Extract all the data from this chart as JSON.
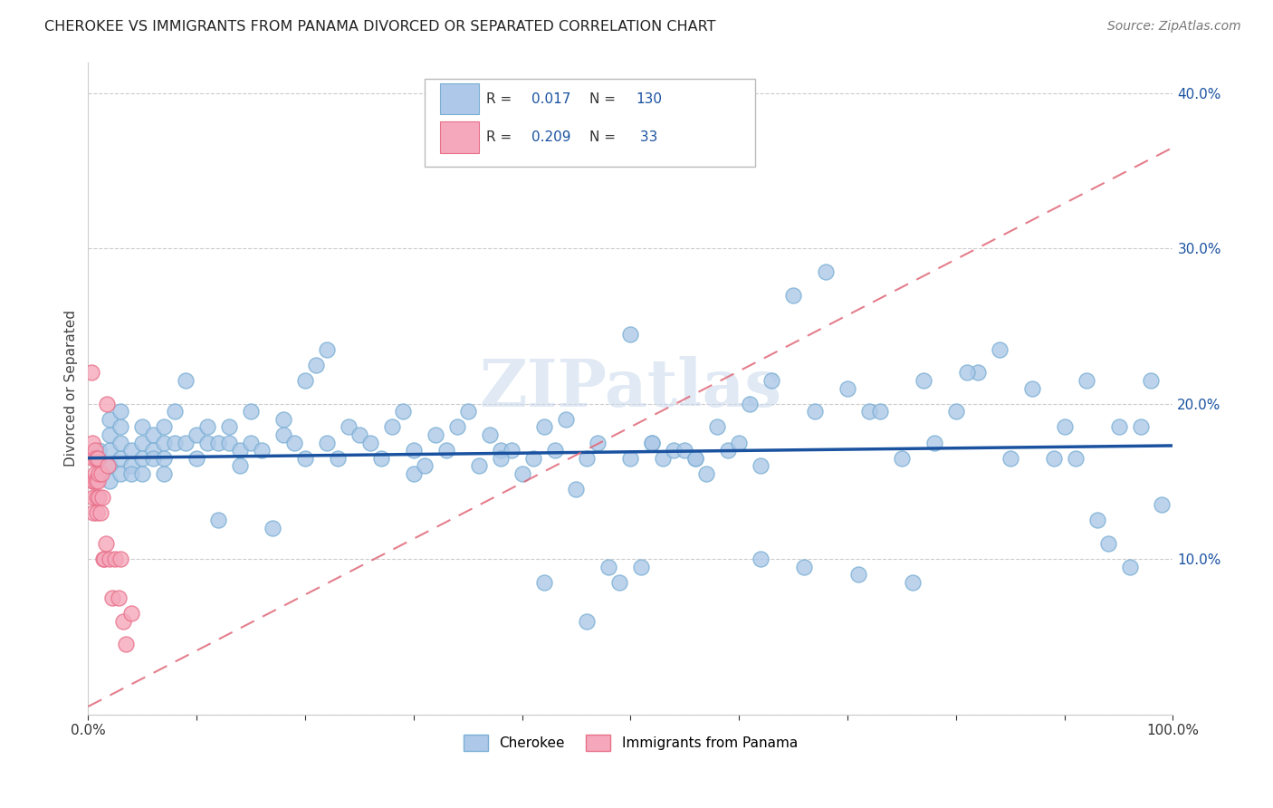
{
  "title": "CHEROKEE VS IMMIGRANTS FROM PANAMA DIVORCED OR SEPARATED CORRELATION CHART",
  "source": "Source: ZipAtlas.com",
  "ylabel": "Divorced or Separated",
  "x_min": 0.0,
  "x_max": 1.0,
  "y_min": 0.0,
  "y_max": 0.42,
  "y_ticks": [
    0.0,
    0.1,
    0.2,
    0.3,
    0.4
  ],
  "y_tick_labels": [
    "",
    "10.0%",
    "20.0%",
    "30.0%",
    "40.0%"
  ],
  "x_tick_pos": [
    0.0,
    0.1,
    0.2,
    0.3,
    0.4,
    0.5,
    0.6,
    0.7,
    0.8,
    0.9,
    1.0
  ],
  "x_tick_labels": [
    "0.0%",
    "",
    "",
    "",
    "",
    "",
    "",
    "",
    "",
    "",
    "100.0%"
  ],
  "cherokee_color": "#adc8e8",
  "panama_color": "#f5a8bb",
  "cherokee_edge": "#7aafd4",
  "panama_edge": "#e8708a",
  "trend_cherokee_color": "#1a52a0",
  "trend_panama_color": "#e06878",
  "R_cherokee": 0.017,
  "N_cherokee": 130,
  "R_panama": 0.209,
  "N_panama": 33,
  "watermark": "ZIPatlas",
  "legend_labels": [
    "Cherokee",
    "Immigrants from Panama"
  ],
  "cherokee_x": [
    0.01,
    0.01,
    0.02,
    0.02,
    0.02,
    0.02,
    0.02,
    0.03,
    0.03,
    0.03,
    0.03,
    0.03,
    0.04,
    0.04,
    0.04,
    0.05,
    0.05,
    0.05,
    0.05,
    0.06,
    0.06,
    0.06,
    0.07,
    0.07,
    0.07,
    0.07,
    0.08,
    0.08,
    0.09,
    0.09,
    0.1,
    0.1,
    0.11,
    0.11,
    0.12,
    0.12,
    0.13,
    0.13,
    0.14,
    0.14,
    0.15,
    0.15,
    0.16,
    0.17,
    0.18,
    0.18,
    0.19,
    0.2,
    0.2,
    0.21,
    0.22,
    0.22,
    0.23,
    0.24,
    0.25,
    0.26,
    0.27,
    0.28,
    0.29,
    0.3,
    0.3,
    0.31,
    0.32,
    0.33,
    0.34,
    0.35,
    0.36,
    0.37,
    0.38,
    0.39,
    0.4,
    0.41,
    0.42,
    0.43,
    0.44,
    0.45,
    0.46,
    0.47,
    0.48,
    0.49,
    0.5,
    0.5,
    0.51,
    0.52,
    0.53,
    0.54,
    0.55,
    0.56,
    0.57,
    0.58,
    0.59,
    0.6,
    0.61,
    0.62,
    0.63,
    0.65,
    0.67,
    0.68,
    0.7,
    0.72,
    0.73,
    0.75,
    0.77,
    0.78,
    0.8,
    0.82,
    0.84,
    0.85,
    0.87,
    0.89,
    0.9,
    0.91,
    0.92,
    0.93,
    0.94,
    0.95,
    0.96,
    0.97,
    0.98,
    0.99,
    0.38,
    0.42,
    0.46,
    0.52,
    0.56,
    0.62,
    0.66,
    0.71,
    0.76,
    0.81
  ],
  "cherokee_y": [
    0.165,
    0.17,
    0.15,
    0.16,
    0.17,
    0.18,
    0.19,
    0.155,
    0.165,
    0.175,
    0.185,
    0.195,
    0.16,
    0.17,
    0.155,
    0.175,
    0.185,
    0.165,
    0.155,
    0.17,
    0.18,
    0.165,
    0.185,
    0.175,
    0.165,
    0.155,
    0.195,
    0.175,
    0.215,
    0.175,
    0.18,
    0.165,
    0.175,
    0.185,
    0.175,
    0.125,
    0.185,
    0.175,
    0.17,
    0.16,
    0.195,
    0.175,
    0.17,
    0.12,
    0.19,
    0.18,
    0.175,
    0.215,
    0.165,
    0.225,
    0.175,
    0.235,
    0.165,
    0.185,
    0.18,
    0.175,
    0.165,
    0.185,
    0.195,
    0.155,
    0.17,
    0.16,
    0.18,
    0.17,
    0.185,
    0.195,
    0.16,
    0.18,
    0.17,
    0.17,
    0.155,
    0.165,
    0.185,
    0.17,
    0.19,
    0.145,
    0.165,
    0.175,
    0.095,
    0.085,
    0.245,
    0.165,
    0.095,
    0.175,
    0.165,
    0.17,
    0.17,
    0.165,
    0.155,
    0.185,
    0.17,
    0.175,
    0.2,
    0.16,
    0.215,
    0.27,
    0.195,
    0.285,
    0.21,
    0.195,
    0.195,
    0.165,
    0.215,
    0.175,
    0.195,
    0.22,
    0.235,
    0.165,
    0.21,
    0.165,
    0.185,
    0.165,
    0.215,
    0.125,
    0.11,
    0.185,
    0.095,
    0.185,
    0.215,
    0.135,
    0.165,
    0.085,
    0.06,
    0.175,
    0.165,
    0.1,
    0.095,
    0.09,
    0.085,
    0.22
  ],
  "panama_x": [
    0.003,
    0.004,
    0.004,
    0.005,
    0.005,
    0.005,
    0.005,
    0.006,
    0.006,
    0.007,
    0.007,
    0.008,
    0.008,
    0.009,
    0.009,
    0.01,
    0.01,
    0.011,
    0.012,
    0.013,
    0.014,
    0.015,
    0.016,
    0.017,
    0.018,
    0.02,
    0.022,
    0.025,
    0.028,
    0.03,
    0.032,
    0.035,
    0.04
  ],
  "panama_y": [
    0.22,
    0.175,
    0.15,
    0.165,
    0.15,
    0.14,
    0.13,
    0.17,
    0.155,
    0.165,
    0.15,
    0.14,
    0.13,
    0.165,
    0.15,
    0.155,
    0.14,
    0.13,
    0.155,
    0.14,
    0.1,
    0.1,
    0.11,
    0.2,
    0.16,
    0.1,
    0.075,
    0.1,
    0.075,
    0.1,
    0.06,
    0.045,
    0.065
  ],
  "cherokee_trendline_y0": 0.165,
  "cherokee_trendline_y1": 0.173,
  "panama_trendline_x0": 0.0,
  "panama_trendline_y0": 0.005,
  "panama_trendline_x1": 1.0,
  "panama_trendline_y1": 0.365
}
